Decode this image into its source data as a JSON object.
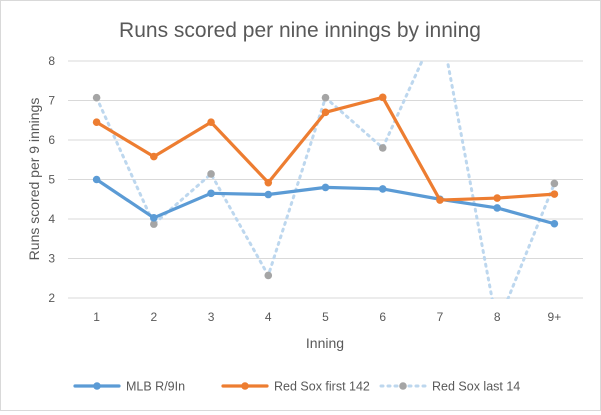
{
  "chart_data": {
    "type": "line",
    "title": "Runs scored per nine innings by inning",
    "xlabel": "Inning",
    "ylabel": "Runs scored per 9 innings",
    "categories": [
      "1",
      "2",
      "3",
      "4",
      "5",
      "6",
      "7",
      "8",
      "9+"
    ],
    "ylim": [
      2,
      8
    ],
    "yticks": [
      2,
      3,
      4,
      5,
      6,
      7,
      8
    ],
    "grid": true,
    "legend_position": "bottom",
    "series": [
      {
        "name": "MLB R/9In",
        "color": "#5b9bd5",
        "style": "solid",
        "values": [
          5.0,
          4.03,
          4.65,
          4.62,
          4.8,
          4.76,
          4.5,
          4.28,
          3.88
        ]
      },
      {
        "name": "Red Sox first 142",
        "color": "#ed7d31",
        "style": "solid",
        "values": [
          6.45,
          5.58,
          6.45,
          4.92,
          6.7,
          7.08,
          4.48,
          4.53,
          4.63
        ]
      },
      {
        "name": "Red Sox last 14",
        "color": "#bdd7ee",
        "marker_color": "#a5a5a5",
        "style": "dotted",
        "values": [
          7.07,
          3.87,
          5.14,
          2.57,
          7.07,
          5.8,
          9.0,
          1.3,
          4.9
        ]
      }
    ]
  }
}
